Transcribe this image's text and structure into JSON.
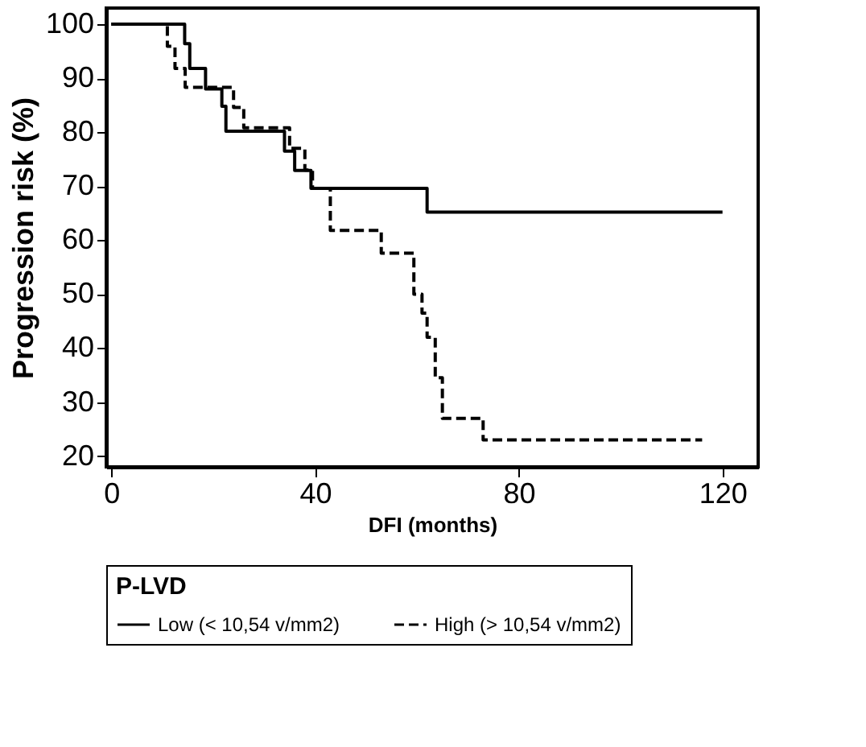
{
  "chart_data": {
    "type": "step",
    "xlabel": "DFI (months)",
    "ylabel": "Progression risk (%)",
    "legend_title": "P-LVD",
    "legend": "bottom",
    "grid": false,
    "marker": "none",
    "xlim": [
      -1,
      127
    ],
    "xticks": [
      0,
      40,
      80,
      120
    ],
    "ylim": [
      18,
      103
    ],
    "yticks": [
      20,
      30,
      40,
      50,
      60,
      70,
      80,
      90,
      100
    ],
    "series": [
      {
        "name": "Low (< 10,54 v/mm2)",
        "color": "#000000",
        "line_style": "solid",
        "x": [
          0,
          14.4,
          15.4,
          18.5,
          21.7,
          22.5,
          34,
          36,
          39.2,
          62,
          120
        ],
        "values": [
          100,
          96.4,
          91.8,
          88,
          84.8,
          80.2,
          76.5,
          72.9,
          69.6,
          65.2,
          65.2
        ]
      },
      {
        "name": "High (> 10,54 v/mm2)",
        "color": "#000000",
        "line_style": "dashed",
        "x": [
          0,
          11,
          12.5,
          14.5,
          24,
          26,
          35,
          38,
          39.5,
          43,
          53,
          59.4,
          61,
          62,
          63.6,
          65,
          73,
          116
        ],
        "values": [
          100,
          95.9,
          91.8,
          88.3,
          84.6,
          80.8,
          77,
          73,
          69.6,
          61.8,
          57.6,
          50,
          46.5,
          42,
          34.5,
          27,
          23,
          23
        ]
      }
    ]
  }
}
